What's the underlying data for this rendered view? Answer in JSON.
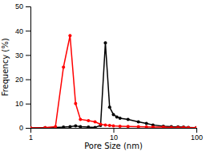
{
  "chart_data": {
    "type": "line",
    "xlabel": "Pore Size (nm)",
    "ylabel": "Frequency (%)",
    "log": "x",
    "xlim": [
      1,
      100
    ],
    "xticks": [
      1,
      10,
      100
    ],
    "ylim": [
      0,
      50
    ],
    "yticks": [
      0,
      10,
      20,
      30,
      40,
      50
    ],
    "grid": false,
    "series": [
      {
        "color": "#000000",
        "marker": "circle",
        "x": [
          1.0,
          1.5,
          2.0,
          2.5,
          3.0,
          3.5,
          4.0,
          5.0,
          6.0,
          7.0,
          8.0,
          9.0,
          10.0,
          11.0,
          12.0,
          15.0,
          20.0,
          25.0,
          30.0,
          40.0,
          50.0,
          60.0,
          70.0,
          80.0,
          100.0
        ],
        "values": [
          0.0,
          0.1,
          0.2,
          0.3,
          0.5,
          0.8,
          0.5,
          0.3,
          0.2,
          1.0,
          35.0,
          8.5,
          5.5,
          4.5,
          4.0,
          3.5,
          2.5,
          1.8,
          1.2,
          0.7,
          0.5,
          0.4,
          0.3,
          0.2,
          0.1
        ]
      },
      {
        "color": "#ff0000",
        "marker": "circle",
        "x": [
          1.0,
          1.5,
          2.0,
          2.5,
          3.0,
          3.5,
          4.0,
          5.0,
          6.0,
          7.0,
          8.0,
          9.0,
          10.0,
          12.0,
          15.0,
          20.0,
          25.0,
          30.0,
          40.0,
          50.0,
          60.0,
          70.0,
          80.0,
          100.0
        ],
        "values": [
          0.0,
          0.1,
          0.5,
          25.0,
          38.0,
          10.0,
          3.5,
          3.0,
          2.5,
          1.5,
          1.2,
          1.0,
          0.8,
          0.7,
          0.6,
          0.5,
          0.4,
          0.3,
          0.3,
          0.2,
          0.2,
          0.2,
          0.1,
          0.1
        ]
      }
    ]
  }
}
